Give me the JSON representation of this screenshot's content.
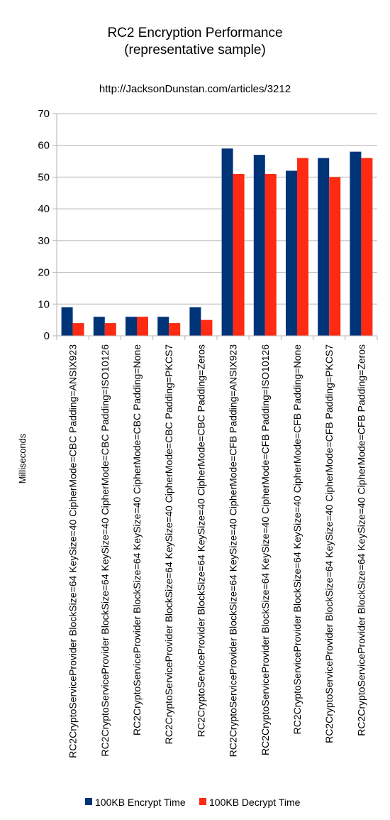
{
  "chart_data": {
    "type": "bar",
    "title": "RC2 Encryption Performance",
    "title_line2": "(representative sample)",
    "subtitle": "http://JacksonDunstan.com/articles/3212",
    "xlabel": "",
    "ylabel": "Milliseconds",
    "ylim": [
      0,
      70
    ],
    "yticks": [
      0,
      10,
      20,
      30,
      40,
      50,
      60,
      70
    ],
    "grid": true,
    "legend_position": "bottom",
    "categories": [
      "RC2CryptoServiceProvider BlockSize=64 KeySize=40 CipherMode=CBC Padding=ANSIX923",
      "RC2CryptoServiceProvider BlockSize=64 KeySize=40 CipherMode=CBC Padding=ISO10126",
      "RC2CryptoServiceProvider BlockSize=64 KeySize=40 CipherMode=CBC Padding=None",
      "RC2CryptoServiceProvider BlockSize=64 KeySize=40 CipherMode=CBC Padding=PKCS7",
      "RC2CryptoServiceProvider BlockSize=64 KeySize=40 CipherMode=CBC Padding=Zeros",
      "RC2CryptoServiceProvider BlockSize=64 KeySize=40 CipherMode=CFB Padding=ANSIX923",
      "RC2CryptoServiceProvider BlockSize=64 KeySize=40 CipherMode=CFB Padding=ISO10126",
      "RC2CryptoServiceProvider BlockSize=64 KeySize=40 CipherMode=CFB Padding=None",
      "RC2CryptoServiceProvider BlockSize=64 KeySize=40 CipherMode=CFB Padding=PKCS7",
      "RC2CryptoServiceProvider BlockSize=64 KeySize=40 CipherMode=CFB Padding=Zeros"
    ],
    "series": [
      {
        "name": "100KB Encrypt Time",
        "color": "#003478",
        "values": [
          9,
          6,
          6,
          6,
          9,
          59,
          57,
          52,
          56,
          58
        ]
      },
      {
        "name": "100KB Decrypt Time",
        "color": "#ff2a12",
        "values": [
          4,
          4,
          6,
          4,
          5,
          51,
          51,
          56,
          50,
          56
        ]
      }
    ]
  }
}
